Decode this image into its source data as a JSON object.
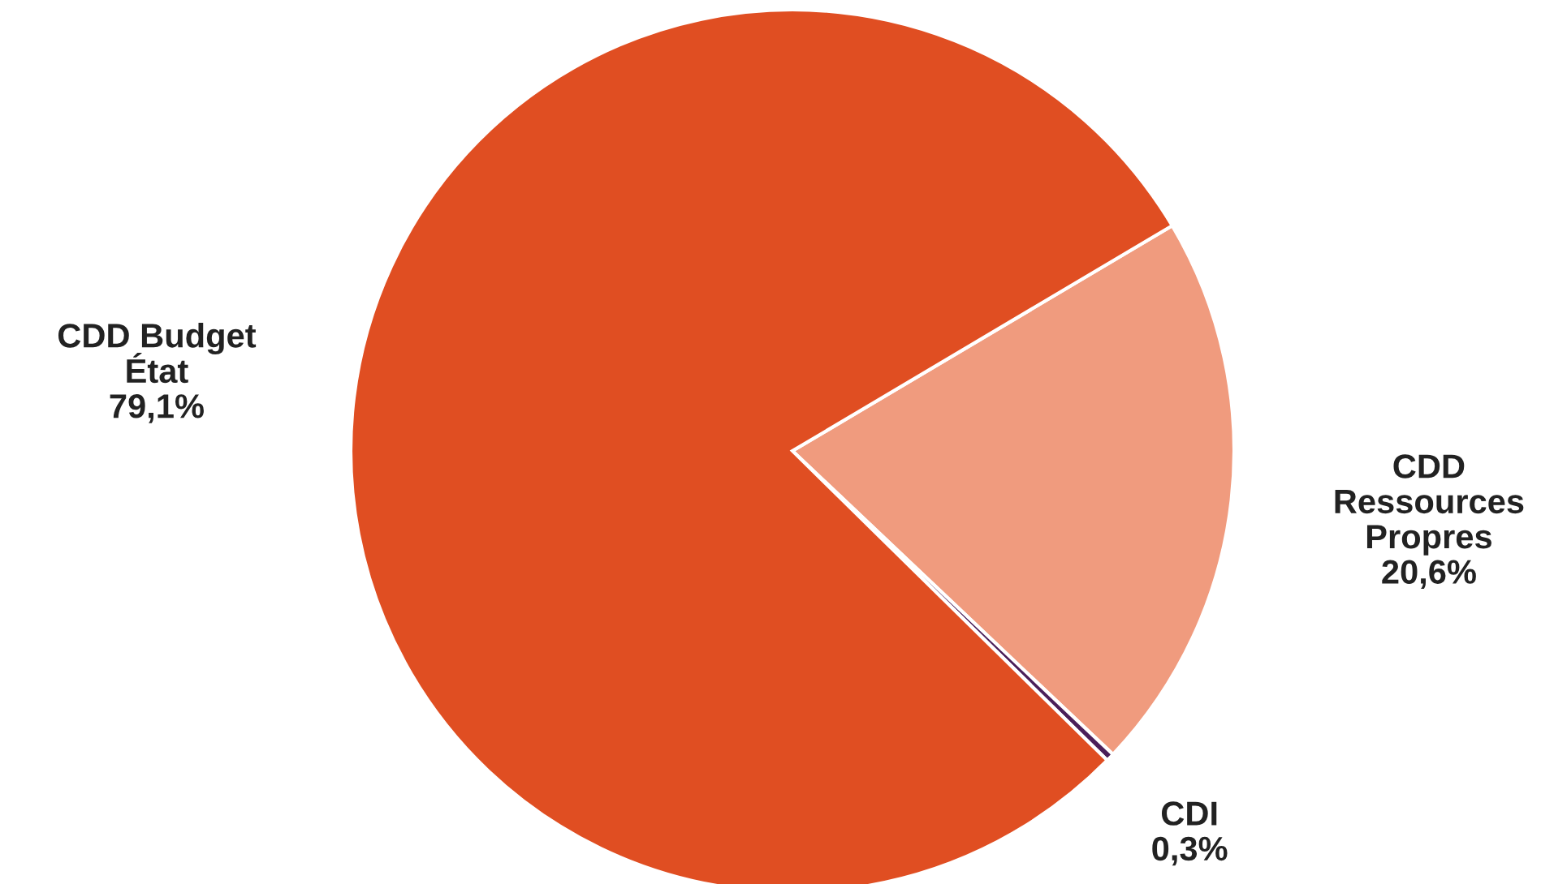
{
  "chart_data": {
    "type": "pie",
    "categories": [
      "CDD Ressources Propres",
      "CDI",
      "CDD Budget État"
    ],
    "values": [
      20.6,
      0.3,
      79.1
    ],
    "value_labels": [
      "20,6%",
      "0,3%",
      "79,1%"
    ],
    "colors": [
      "#f09b7e",
      "#4b1f5a",
      "#e04e22"
    ]
  }
}
